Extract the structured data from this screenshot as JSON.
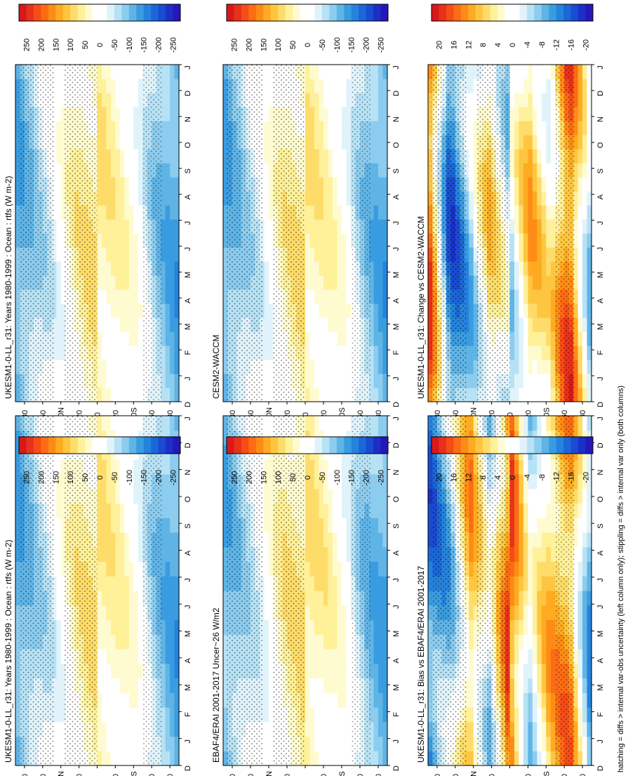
{
  "footnote": "hatching = diffs > internal var-obs uncertainty (left column only); stippling = diffs > internal var only (both columns)",
  "abs_palette": [
    "#d7191c",
    "#e8311a",
    "#f44d16",
    "#fb6c14",
    "#fd8c16",
    "#feab22",
    "#fec640",
    "#fedc6a",
    "#fff09a",
    "#fffbd0",
    "#ffffff",
    "#ffffff",
    "#e0f3fb",
    "#b7e2f5",
    "#8cccee",
    "#5fb4e6",
    "#3a9ce0",
    "#2583dc",
    "#1b67d8",
    "#1a4bd0",
    "#1c2fc8",
    "#2418b8"
  ],
  "diff_palette": [
    "#d7191c",
    "#e8311a",
    "#f44d16",
    "#fb6c14",
    "#fd8c16",
    "#feab22",
    "#fec640",
    "#fedc6a",
    "#fff09a",
    "#fffbd0",
    "#ffffff",
    "#ffffff",
    "#e0f3fb",
    "#b7e2f5",
    "#8cccee",
    "#5fb4e6",
    "#3a9ce0",
    "#2583dc",
    "#1b67d8",
    "#1a4bd0",
    "#1c2fc8",
    "#2418b8"
  ],
  "months": [
    "D",
    "J",
    "F",
    "M",
    "A",
    "M",
    "J",
    "J",
    "A",
    "S",
    "O",
    "N",
    "D",
    "J"
  ],
  "lat_ticks": [
    "80",
    "60",
    "40N",
    "20",
    "0",
    "20",
    "40S",
    "60",
    "80"
  ],
  "chart_data": [
    {
      "type": "heatmap",
      "title": "UKESM1-0-LL_r31: Years 1980-1999 : Ocean : rtfs (W m-2)",
      "x": [
        "D",
        "J",
        "F",
        "M",
        "A",
        "M",
        "J",
        "J",
        "A",
        "S",
        "O",
        "N",
        "D",
        "J"
      ],
      "y": [
        "80",
        "60",
        "40N",
        "20",
        "0",
        "20",
        "40S",
        "60",
        "80"
      ],
      "colorbar_ticks": [
        "250",
        "200",
        "150",
        "100",
        "50",
        "0",
        "-50",
        "-100",
        "-150",
        "-200",
        "-250"
      ],
      "zlim": [
        -275,
        275
      ],
      "values_by_lat": [
        -110,
        -60,
        -10,
        45,
        60,
        40,
        5,
        -80,
        -120
      ]
    },
    {
      "type": "heatmap",
      "title": "UKESM1-0-LL_r31: Years 1980-1999 : Ocean : rtfs (W m-2)",
      "x": [
        "D",
        "J",
        "F",
        "M",
        "A",
        "M",
        "J",
        "J",
        "A",
        "S",
        "O",
        "N",
        "D",
        "J"
      ],
      "y": [
        "80",
        "60",
        "40N",
        "20",
        "0",
        "20",
        "40S",
        "60",
        "80"
      ],
      "colorbar_ticks": [
        "250",
        "200",
        "150",
        "100",
        "50",
        "0",
        "-50",
        "-100",
        "-150",
        "-200",
        "-250"
      ],
      "zlim": [
        -275,
        275
      ],
      "values_by_lat": [
        -110,
        -60,
        -10,
        45,
        60,
        40,
        5,
        -80,
        -120
      ]
    },
    {
      "type": "heatmap",
      "title": "EBAF4/ERAI 2001-2017 Uncer~26 W/m2",
      "x": [
        "D",
        "J",
        "F",
        "M",
        "A",
        "M",
        "J",
        "J",
        "A",
        "S",
        "O",
        "N",
        "D",
        "J"
      ],
      "y": [
        "80",
        "60",
        "40N",
        "20",
        "0",
        "20",
        "40S",
        "60",
        "80"
      ],
      "colorbar_ticks": [
        "250",
        "200",
        "150",
        "100",
        "50",
        "0",
        "-50",
        "-100",
        "-150",
        "-200",
        "-250"
      ],
      "zlim": [
        -275,
        275
      ],
      "values_by_lat": [
        -105,
        -55,
        -5,
        50,
        65,
        45,
        0,
        -85,
        -115
      ]
    },
    {
      "type": "heatmap",
      "title": "CESM2-WACCM",
      "x": [
        "D",
        "J",
        "F",
        "M",
        "A",
        "M",
        "J",
        "J",
        "A",
        "S",
        "O",
        "N",
        "D",
        "J"
      ],
      "y": [
        "80",
        "60",
        "40N",
        "20",
        "0",
        "20",
        "40S",
        "60",
        "80"
      ],
      "colorbar_ticks": [
        "250",
        "200",
        "150",
        "100",
        "50",
        "0",
        "-50",
        "-100",
        "-150",
        "-200",
        "-250"
      ],
      "zlim": [
        -275,
        275
      ],
      "values_by_lat": [
        -110,
        -60,
        -10,
        45,
        60,
        40,
        5,
        -80,
        -120
      ]
    },
    {
      "type": "heatmap",
      "title": "UKESM1-0-LL_r31: Bias vs EBAF4/ERAI 2001-2017",
      "x": [
        "D",
        "J",
        "F",
        "M",
        "A",
        "M",
        "J",
        "J",
        "A",
        "S",
        "O",
        "N",
        "D",
        "J"
      ],
      "y": [
        "80",
        "60",
        "40N",
        "20",
        "0",
        "20",
        "40S",
        "60",
        "80"
      ],
      "colorbar_ticks": [
        "20",
        "16",
        "12",
        "8",
        "4",
        "0",
        "-4",
        "-8",
        "-12",
        "-16",
        "-20"
      ],
      "zlim": [
        -22,
        22
      ],
      "values_by_lat": [
        -12,
        -6,
        10,
        -4,
        16,
        -3,
        8,
        12,
        -8
      ]
    },
    {
      "type": "heatmap",
      "title": "UKESM1-0-LL_r31: Change vs CESM2-WACCM",
      "x": [
        "D",
        "J",
        "F",
        "M",
        "A",
        "M",
        "J",
        "J",
        "A",
        "S",
        "O",
        "N",
        "D",
        "J"
      ],
      "y": [
        "80",
        "60",
        "40N",
        "20",
        "0",
        "20",
        "40S",
        "60",
        "80"
      ],
      "colorbar_ticks": [
        "20",
        "16",
        "12",
        "8",
        "4",
        "0",
        "-4",
        "-8",
        "-12",
        "-16",
        "-20"
      ],
      "zlim": [
        -22,
        22
      ],
      "values_by_lat": [
        14,
        -14,
        -6,
        6,
        -4,
        8,
        2,
        16,
        -4
      ]
    }
  ]
}
